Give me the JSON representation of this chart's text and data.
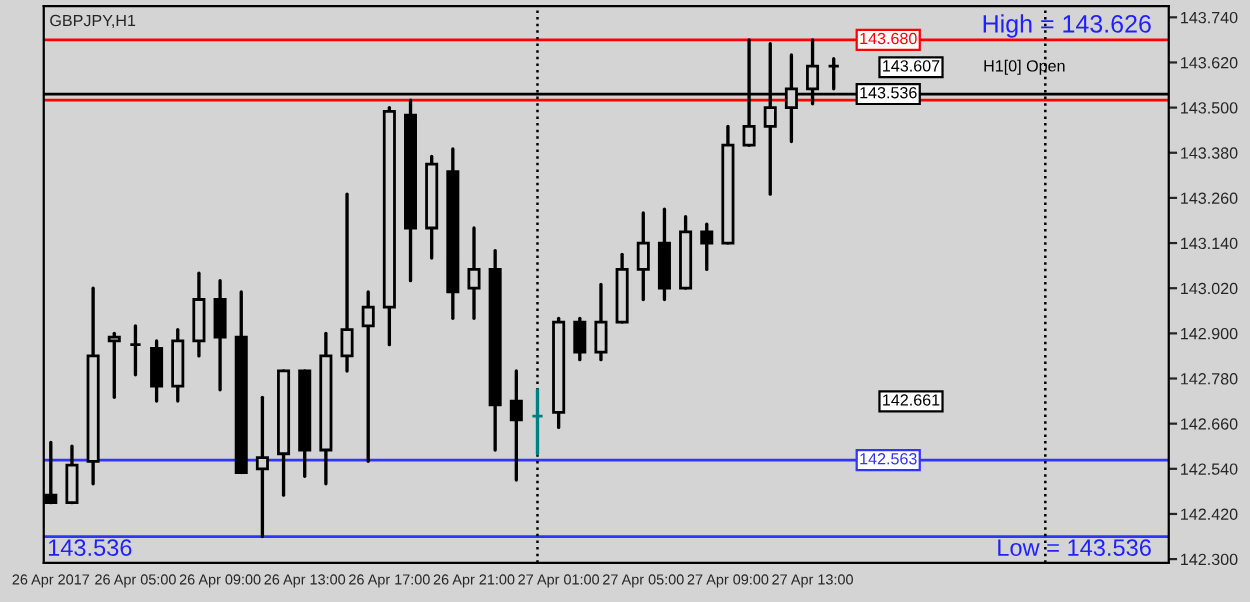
{
  "chart_data": {
    "type": "candlestick",
    "title": "GBPJPY,H1",
    "x": [
      "2017-04-26T01:00",
      "2017-04-26T02:00",
      "2017-04-26T03:00",
      "2017-04-26T04:00",
      "2017-04-26T05:00",
      "2017-04-26T06:00",
      "2017-04-26T07:00",
      "2017-04-26T08:00",
      "2017-04-26T09:00",
      "2017-04-26T10:00",
      "2017-04-26T11:00",
      "2017-04-26T12:00",
      "2017-04-26T13:00",
      "2017-04-26T14:00",
      "2017-04-26T15:00",
      "2017-04-26T16:00",
      "2017-04-26T17:00",
      "2017-04-26T18:00",
      "2017-04-26T19:00",
      "2017-04-26T20:00",
      "2017-04-26T21:00",
      "2017-04-26T22:00",
      "2017-04-26T23:00",
      "2017-04-27T00:00",
      "2017-04-27T01:00",
      "2017-04-27T02:00",
      "2017-04-27T03:00",
      "2017-04-27T04:00",
      "2017-04-27T05:00",
      "2017-04-27T06:00",
      "2017-04-27T07:00",
      "2017-04-27T08:00",
      "2017-04-27T09:00",
      "2017-04-27T10:00",
      "2017-04-27T11:00",
      "2017-04-27T12:00",
      "2017-04-27T13:00",
      "2017-04-27T14:00"
    ],
    "ohlc": [
      [
        142.47,
        142.61,
        142.45,
        142.45
      ],
      [
        142.45,
        142.6,
        142.45,
        142.55
      ],
      [
        142.56,
        143.02,
        142.5,
        142.84
      ],
      [
        142.88,
        142.9,
        142.73,
        142.89
      ],
      [
        142.87,
        142.92,
        142.79,
        142.87
      ],
      [
        142.86,
        142.88,
        142.72,
        142.76
      ],
      [
        142.76,
        142.91,
        142.72,
        142.88
      ],
      [
        142.88,
        143.06,
        142.84,
        142.99
      ],
      [
        142.99,
        143.04,
        142.75,
        142.89
      ],
      [
        142.89,
        143.01,
        142.53,
        142.53
      ],
      [
        142.54,
        142.73,
        142.36,
        142.57
      ],
      [
        142.58,
        142.8,
        142.47,
        142.8
      ],
      [
        142.8,
        142.8,
        142.52,
        142.59
      ],
      [
        142.59,
        142.9,
        142.5,
        142.84
      ],
      [
        142.84,
        143.27,
        142.8,
        142.91
      ],
      [
        142.92,
        143.01,
        142.56,
        142.97
      ],
      [
        142.97,
        143.5,
        142.87,
        143.49
      ],
      [
        143.48,
        143.52,
        143.04,
        143.18
      ],
      [
        143.18,
        143.37,
        143.1,
        143.35
      ],
      [
        143.33,
        143.39,
        142.94,
        143.01
      ],
      [
        143.02,
        143.18,
        142.94,
        143.07
      ],
      [
        143.07,
        143.12,
        142.59,
        142.71
      ],
      [
        142.72,
        142.8,
        142.51,
        142.67
      ],
      [
        142.68,
        142.75,
        142.58,
        142.68
      ],
      [
        142.69,
        142.94,
        142.65,
        142.93
      ],
      [
        142.93,
        142.94,
        142.83,
        142.85
      ],
      [
        142.85,
        143.03,
        142.83,
        142.93
      ],
      [
        142.93,
        143.11,
        142.93,
        143.07
      ],
      [
        143.07,
        143.22,
        142.99,
        143.14
      ],
      [
        143.14,
        143.23,
        142.99,
        143.02
      ],
      [
        143.02,
        143.21,
        143.02,
        143.17
      ],
      [
        143.17,
        143.19,
        143.07,
        143.14
      ],
      [
        143.14,
        143.45,
        143.14,
        143.4
      ],
      [
        143.4,
        143.68,
        143.4,
        143.45
      ],
      [
        143.45,
        143.67,
        143.27,
        143.5
      ],
      [
        143.5,
        143.64,
        143.41,
        143.55
      ],
      [
        143.55,
        143.68,
        143.51,
        143.61
      ],
      [
        143.61,
        143.63,
        143.55,
        143.61
      ]
    ],
    "colors": [
      "#000000",
      "#000000",
      "#000000",
      "#000000",
      "#000000",
      "#000000",
      "#000000",
      "#000000",
      "#000000",
      "#000000",
      "#000000",
      "#000000",
      "#000000",
      "#000000",
      "#000000",
      "#000000",
      "#000000",
      "#000000",
      "#000000",
      "#000000",
      "#000000",
      "#000000",
      "#000000",
      "#008080",
      "#000000",
      "#000000",
      "#000000",
      "#000000",
      "#000000",
      "#000000",
      "#000000",
      "#000000",
      "#000000",
      "#000000",
      "#000000",
      "#000000",
      "#000000",
      "#000000"
    ],
    "xlim": [
      "2017-04-26T00:40",
      "2017-04-28T05:50"
    ],
    "xticks": [
      {
        "value": "2017-04-26T01:00",
        "label": "26 Apr 2017"
      },
      {
        "value": "2017-04-26T05:00",
        "label": "26 Apr 05:00"
      },
      {
        "value": "2017-04-26T09:00",
        "label": "26 Apr 09:00"
      },
      {
        "value": "2017-04-26T13:00",
        "label": "26 Apr 13:00"
      },
      {
        "value": "2017-04-26T17:00",
        "label": "26 Apr 17:00"
      },
      {
        "value": "2017-04-26T21:00",
        "label": "26 Apr 21:00"
      },
      {
        "value": "2017-04-27T01:00",
        "label": "27 Apr 01:00"
      },
      {
        "value": "2017-04-27T05:00",
        "label": "27 Apr 05:00"
      },
      {
        "value": "2017-04-27T09:00",
        "label": "27 Apr 09:00"
      },
      {
        "value": "2017-04-27T13:00",
        "label": "27 Apr 13:00"
      }
    ],
    "ylim": [
      142.29,
      143.77
    ],
    "yticks": [
      {
        "value": 142.3,
        "label": "142.300"
      },
      {
        "value": 142.42,
        "label": "142.420"
      },
      {
        "value": 142.54,
        "label": "142.540"
      },
      {
        "value": 142.66,
        "label": "142.660"
      },
      {
        "value": 142.78,
        "label": "142.780"
      },
      {
        "value": 142.9,
        "label": "142.900"
      },
      {
        "value": 143.02,
        "label": "143.020"
      },
      {
        "value": 143.14,
        "label": "143.140"
      },
      {
        "value": 143.26,
        "label": "143.260"
      },
      {
        "value": 143.38,
        "label": "143.380"
      },
      {
        "value": 143.5,
        "label": "143.500"
      },
      {
        "value": 143.62,
        "label": "143.620"
      },
      {
        "value": 143.74,
        "label": "143.740"
      }
    ],
    "ref_lines": [
      {
        "axis": "y",
        "value": 143.68,
        "label": "143.680",
        "color": "#ff0000"
      },
      {
        "axis": "y",
        "value": 143.536,
        "label": "143.536",
        "color": "#000000"
      },
      {
        "axis": "y",
        "value": 143.52,
        "color": "#ff0000"
      },
      {
        "axis": "y",
        "value": 142.563,
        "label": "142.563",
        "color": "#3333ff"
      },
      {
        "axis": "y",
        "value": 142.36,
        "color": "#3333ff"
      },
      {
        "axis": "x",
        "value": "2017-04-27T00:00",
        "color": "#000000",
        "line_style": "dotted"
      },
      {
        "axis": "x",
        "value": "2017-04-28T00:00",
        "color": "#000000",
        "line_style": "dotted"
      }
    ],
    "annotations": [
      "143.607",
      "H1[0] Open",
      "142.661",
      "High = 143.626",
      "Low = 143.536",
      "143.536"
    ],
    "grid": false,
    "legend": false
  }
}
